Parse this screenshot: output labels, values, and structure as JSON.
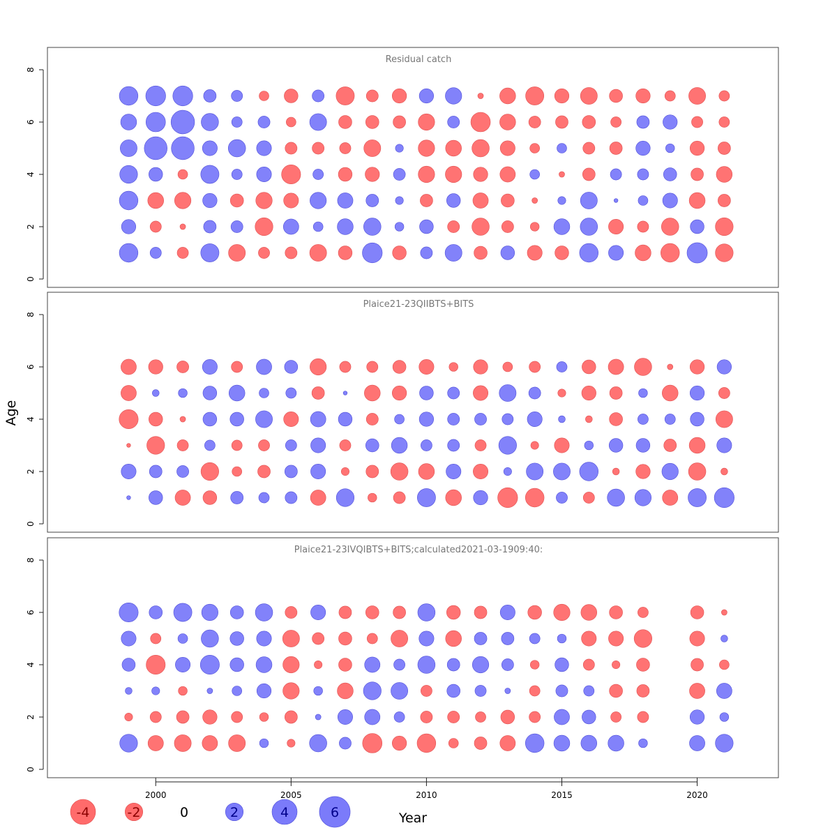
{
  "colors": {
    "negative": "#ff6b6b",
    "positive": "#7b7bfa",
    "negative_stroke": "#e05050",
    "positive_stroke": "#4f4fd8"
  },
  "chart_data": {
    "type": "scatter",
    "xlabel": "Year",
    "ylabel": "Age",
    "xlim": [
      1996,
      2023
    ],
    "x_ticks": [
      2000,
      2005,
      2010,
      2015,
      2020
    ],
    "years": [
      1999,
      2000,
      2001,
      2002,
      2003,
      2004,
      2005,
      2006,
      2007,
      2008,
      2009,
      2010,
      2011,
      2012,
      2013,
      2014,
      2015,
      2016,
      2017,
      2018,
      2019,
      2020,
      2021
    ],
    "legend": [
      {
        "value": -4,
        "label": "-4"
      },
      {
        "value": -2,
        "label": "-2"
      },
      {
        "value": 0,
        "label": "0"
      },
      {
        "value": 2,
        "label": "2"
      },
      {
        "value": 4,
        "label": "4"
      },
      {
        "value": 6,
        "label": "6"
      }
    ],
    "panels": [
      {
        "title": "Residual catch",
        "ylim": [
          0,
          8
        ],
        "y_ticks": [
          0,
          2,
          4,
          6,
          8
        ],
        "ages": [
          1,
          2,
          3,
          4,
          5,
          6,
          7
        ],
        "residuals": {
          "1": [
            2.2,
            0.8,
            -0.8,
            2.1,
            -1.8,
            -0.8,
            -0.9,
            -1.8,
            -1.2,
            2.5,
            -1.2,
            0.9,
            1.8,
            -1.1,
            1.2,
            -1.4,
            -1.2,
            2.2,
            1.4,
            -1.6,
            -2.2,
            2.6,
            -2.0
          ],
          "2": [
            1.3,
            -0.8,
            -0.2,
            1.0,
            0.9,
            -2.0,
            1.5,
            0.6,
            1.6,
            1.9,
            0.5,
            1.2,
            -0.9,
            -1.9,
            -0.9,
            -0.5,
            1.6,
            1.9,
            -1.4,
            -0.8,
            -1.9,
            1.2,
            -2.0
          ],
          "3": [
            2.2,
            -1.6,
            -1.7,
            1.3,
            -1.1,
            -1.7,
            -1.4,
            1.7,
            1.5,
            1.0,
            0.4,
            -1.0,
            1.2,
            -1.5,
            -1.1,
            -0.2,
            0.4,
            1.8,
            0.1,
            0.6,
            1.4,
            -1.6,
            -1.0
          ],
          "4": [
            2.0,
            1.2,
            -0.6,
            2.1,
            0.7,
            1.4,
            -2.3,
            0.7,
            -1.2,
            -1.3,
            0.9,
            -1.7,
            -1.7,
            -1.3,
            -1.5,
            0.6,
            -0.2,
            -1.0,
            0.8,
            0.8,
            1.1,
            -1.0,
            -1.6
          ],
          "5": [
            1.8,
            3.3,
            3.3,
            1.4,
            1.9,
            1.4,
            -0.9,
            -0.9,
            -0.8,
            -1.8,
            0.4,
            -1.7,
            -1.6,
            -1.9,
            -1.4,
            -0.6,
            0.6,
            -0.9,
            -1.0,
            1.3,
            0.5,
            -1.3,
            -1.0
          ],
          "6": [
            1.6,
            2.4,
            3.5,
            1.9,
            0.7,
            0.9,
            -0.6,
            1.8,
            -1.1,
            -1.1,
            -1.0,
            -1.7,
            0.9,
            -2.4,
            -1.6,
            -0.9,
            -1.0,
            -1.1,
            -0.7,
            1.0,
            1.3,
            -0.8,
            -0.7
          ],
          "7": [
            2.2,
            2.5,
            2.5,
            1.0,
            0.8,
            -0.6,
            -1.2,
            0.9,
            -2.1,
            -0.9,
            -1.3,
            1.3,
            1.7,
            -0.2,
            -1.6,
            -2.1,
            -1.3,
            -1.8,
            -1.1,
            -1.3,
            -0.7,
            -1.8,
            -0.7
          ]
        }
      },
      {
        "title": "Plaice21-23QIIBTS+BITS",
        "ylim": [
          0,
          8
        ],
        "y_ticks": [
          0,
          2,
          4,
          6,
          8
        ],
        "ages": [
          1,
          2,
          3,
          4,
          5,
          6
        ],
        "residuals": {
          "1": [
            0.1,
            1.2,
            -1.5,
            -1.2,
            1.0,
            0.7,
            0.9,
            -1.5,
            2.0,
            -0.5,
            -0.9,
            2.1,
            -1.6,
            1.3,
            -2.5,
            -2.2,
            0.8,
            -0.8,
            1.9,
            1.7,
            -1.5,
            2.1,
            2.5
          ],
          "2": [
            1.4,
            1.0,
            0.9,
            -2.0,
            -0.6,
            -1.0,
            1.0,
            1.4,
            -0.4,
            -1.0,
            -1.9,
            -1.6,
            1.4,
            -1.4,
            0.4,
            1.8,
            1.8,
            2.2,
            -0.3,
            -1.3,
            1.7,
            -1.9,
            -0.3
          ],
          "3": [
            -0.1,
            -2.0,
            -0.8,
            0.7,
            -0.7,
            -0.8,
            0.8,
            1.4,
            -0.8,
            1.1,
            1.6,
            0.8,
            0.9,
            -0.8,
            2.0,
            -0.4,
            -1.4,
            0.5,
            1.2,
            1.2,
            -1.0,
            -1.6,
            1.4
          ],
          "4": [
            -2.3,
            -1.2,
            -0.2,
            1.2,
            1.2,
            1.8,
            -1.4,
            1.5,
            1.2,
            -0.9,
            0.6,
            1.3,
            0.9,
            0.9,
            0.8,
            1.4,
            0.3,
            -0.3,
            -1.1,
            0.7,
            0.7,
            1.2,
            -1.8
          ],
          "5": [
            -1.5,
            0.3,
            0.5,
            1.2,
            1.6,
            0.6,
            0.7,
            -1.0,
            0.1,
            -1.6,
            -1.3,
            1.2,
            0.9,
            -1.4,
            1.8,
            0.9,
            -0.4,
            -1.3,
            -1.0,
            0.5,
            -1.6,
            1.3,
            -0.8
          ],
          "6": [
            -1.5,
            -1.3,
            -0.9,
            1.4,
            -0.8,
            1.5,
            1.1,
            -1.7,
            -0.8,
            -0.8,
            -1.1,
            -1.4,
            -0.5,
            -1.3,
            -0.6,
            -0.8,
            0.7,
            -1.2,
            -1.5,
            -1.9,
            -0.2,
            -1.3,
            1.3
          ]
        }
      },
      {
        "title": "Plaice21-23IVQIBTS+BITS;calculated2021-03-1909:40:",
        "ylim": [
          0,
          8
        ],
        "y_ticks": [
          0,
          2,
          4,
          6,
          8
        ],
        "ages": [
          1,
          2,
          3,
          4,
          5,
          6
        ],
        "residuals": {
          "1": [
            2.0,
            -1.5,
            -1.8,
            -1.5,
            -1.8,
            0.5,
            -0.4,
            1.9,
            0.9,
            -2.4,
            -1.3,
            -2.2,
            -0.6,
            -1.0,
            -1.5,
            2.2,
            1.6,
            1.6,
            1.6,
            0.5,
            null,
            1.5,
            2.0
          ],
          "2": [
            -0.4,
            -0.8,
            -1.0,
            -1.3,
            -0.8,
            -0.5,
            -1.0,
            0.2,
            1.4,
            1.5,
            0.7,
            -0.9,
            -0.9,
            -0.7,
            -1.2,
            -0.8,
            1.5,
            1.2,
            -0.7,
            -0.8,
            null,
            1.3,
            0.5
          ],
          "3": [
            0.3,
            0.4,
            -0.5,
            0.2,
            0.6,
            1.3,
            -1.7,
            0.5,
            -1.6,
            2.0,
            1.8,
            -0.8,
            1.1,
            0.8,
            0.2,
            -0.7,
            0.9,
            0.7,
            -1.1,
            -1.0,
            null,
            -1.5,
            1.5
          ],
          "4": [
            1.1,
            -2.3,
            1.4,
            2.3,
            1.2,
            1.6,
            -1.7,
            -0.4,
            -1.1,
            1.5,
            0.8,
            1.9,
            1.0,
            1.7,
            0.9,
            -0.5,
            1.2,
            -0.8,
            -0.4,
            -1.1,
            null,
            -1.0,
            -0.6
          ],
          "5": [
            1.4,
            -0.7,
            0.6,
            1.9,
            1.2,
            1.4,
            -1.8,
            -0.9,
            -1.1,
            -0.7,
            -1.8,
            1.4,
            -1.6,
            1.0,
            1.0,
            0.7,
            0.5,
            -1.4,
            -1.4,
            -2.0,
            null,
            -1.4,
            0.3
          ],
          "6": [
            2.3,
            1.1,
            2.1,
            1.7,
            1.1,
            1.9,
            -0.9,
            1.4,
            -1.0,
            -1.1,
            -1.0,
            1.9,
            -1.2,
            -1.0,
            1.4,
            -1.2,
            -1.7,
            -1.6,
            -1.1,
            -0.7,
            null,
            -1.1,
            -0.2
          ]
        }
      }
    ]
  }
}
